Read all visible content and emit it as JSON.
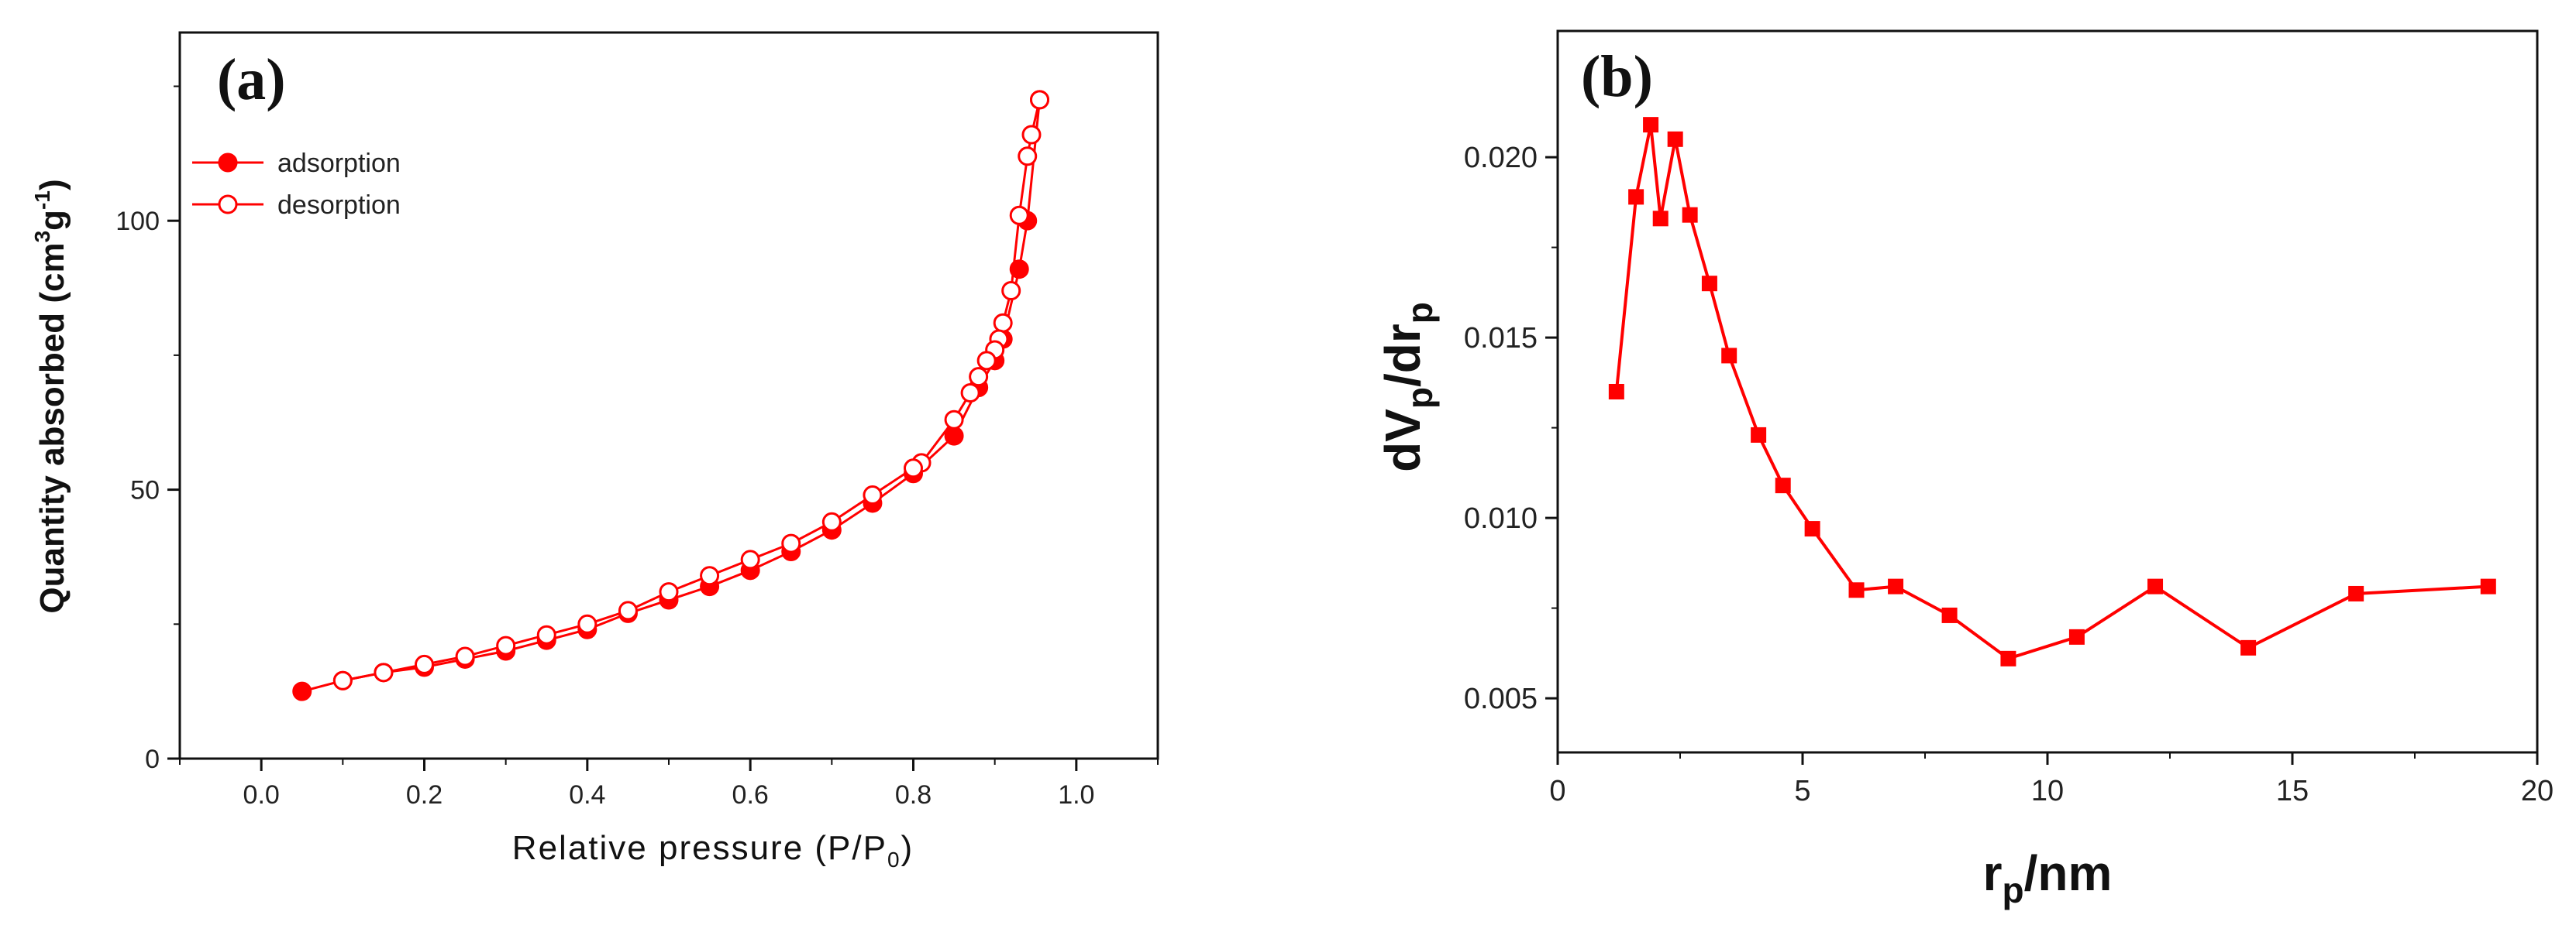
{
  "chart_data": [
    {
      "type": "line",
      "panel_label": "(a)",
      "title": "",
      "xlabel": "Relative pressure (P/P",
      "xlabel_sub": "0",
      "xlabel_close": ")",
      "ylabel": "Quantity absorbed (cm",
      "ylabel_sup1": "3",
      "ylabel_mid": "g",
      "ylabel_sup2": "-1",
      "ylabel_close": ")",
      "xlim": [
        -0.1,
        1.1
      ],
      "ylim": [
        0,
        135
      ],
      "xticks": [
        "0.0",
        "0.2",
        "0.4",
        "0.6",
        "0.8",
        "1.0"
      ],
      "yticks": [
        "0",
        "50",
        "100"
      ],
      "legend_position": "top-left",
      "series": [
        {
          "name": "adsorption",
          "color": "#ff0000",
          "marker": "filled-circle",
          "x": [
            0.05,
            0.1,
            0.15,
            0.2,
            0.25,
            0.3,
            0.35,
            0.4,
            0.45,
            0.5,
            0.55,
            0.6,
            0.65,
            0.7,
            0.75,
            0.8,
            0.85,
            0.88,
            0.9,
            0.91,
            0.93,
            0.94,
            0.955
          ],
          "y": [
            12.5,
            14.5,
            16,
            17,
            18.5,
            20,
            22,
            24,
            27,
            29.5,
            32,
            35,
            38.5,
            42.5,
            47.5,
            53,
            60,
            69,
            74,
            78,
            91,
            100,
            122.5
          ]
        },
        {
          "name": "desorption",
          "color": "#ff0000",
          "marker": "open-circle",
          "x": [
            0.955,
            0.945,
            0.94,
            0.93,
            0.92,
            0.91,
            0.905,
            0.9,
            0.89,
            0.88,
            0.87,
            0.85,
            0.81,
            0.8,
            0.75,
            0.7,
            0.65,
            0.6,
            0.55,
            0.5,
            0.45,
            0.4,
            0.35,
            0.3,
            0.25,
            0.2,
            0.15,
            0.1
          ],
          "y": [
            122.5,
            116,
            112,
            101,
            87,
            81,
            78,
            76,
            74,
            71,
            68,
            63,
            55,
            54,
            49,
            44,
            40,
            37,
            34,
            31,
            27.5,
            25,
            23,
            21,
            19,
            17.5,
            16,
            14.5
          ]
        }
      ]
    },
    {
      "type": "line",
      "panel_label": "(b)",
      "title": "",
      "xlabel_main1": "r",
      "xlabel_sub": "p",
      "xlabel_main2": "/nm",
      "ylabel_main1": "dV",
      "ylabel_sub1": "p",
      "ylabel_main2": "/dr",
      "ylabel_sub2": "p",
      "xlim": [
        0,
        20
      ],
      "ylim": [
        0.0035,
        0.0235
      ],
      "xticks": [
        "0",
        "5",
        "10",
        "15",
        "20"
      ],
      "yticks": [
        "0.005",
        "0.010",
        "0.015",
        "0.020"
      ],
      "series": [
        {
          "name": "dVp/drp",
          "color": "#ff0000",
          "marker": "filled-square",
          "x": [
            1.2,
            1.6,
            1.9,
            2.1,
            2.4,
            2.7,
            3.1,
            3.5,
            4.1,
            4.6,
            5.2,
            6.1,
            6.9,
            8.0,
            9.2,
            10.6,
            12.2,
            14.1,
            16.3,
            19.0
          ],
          "y": [
            0.0135,
            0.0189,
            0.0209,
            0.0183,
            0.0205,
            0.0184,
            0.0165,
            0.0145,
            0.0123,
            0.0109,
            0.0097,
            0.008,
            0.0081,
            0.0073,
            0.0061,
            0.0067,
            0.0081,
            0.0064,
            0.0079,
            0.0081
          ]
        }
      ]
    }
  ]
}
